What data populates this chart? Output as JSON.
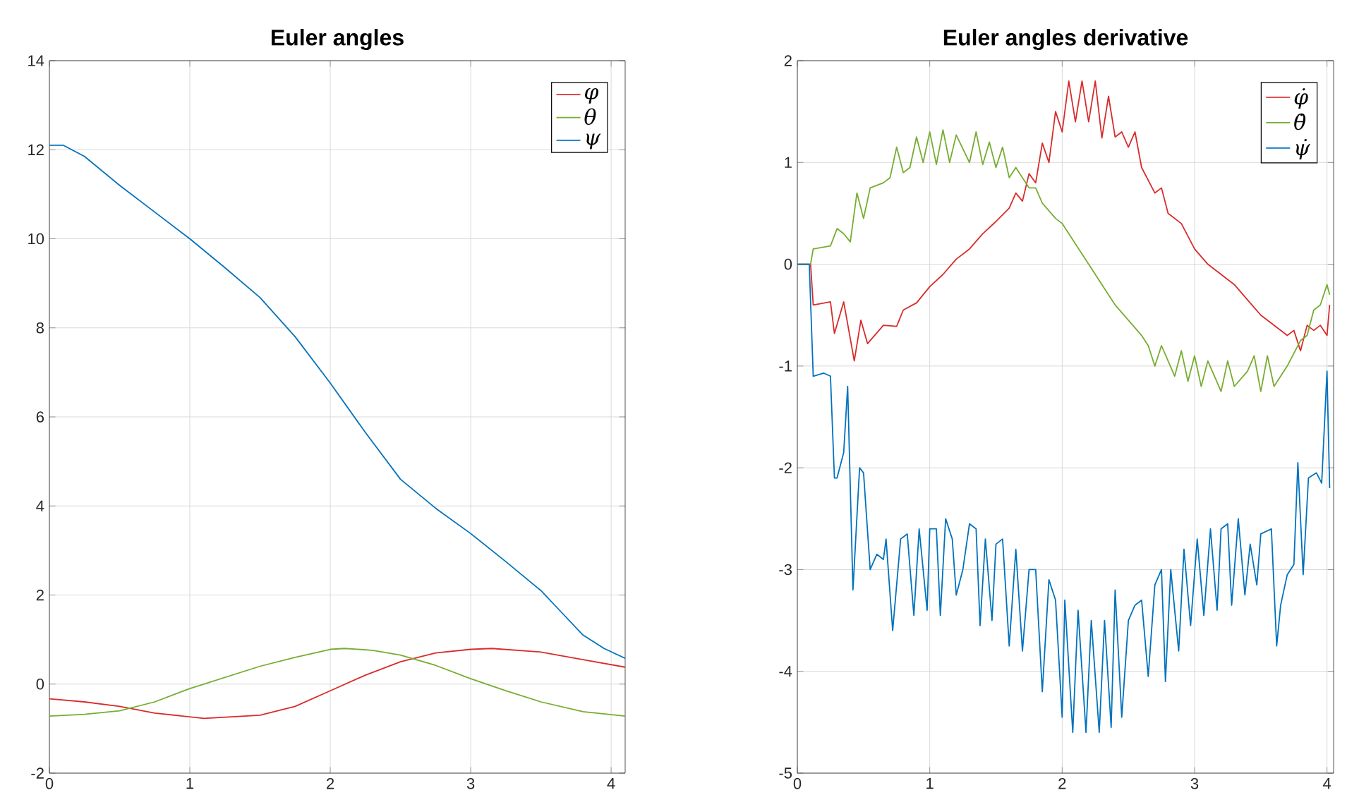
{
  "chart_data": [
    {
      "type": "line",
      "title": "Euler angles",
      "xlim": [
        0,
        4.1
      ],
      "ylim": [
        -2,
        14
      ],
      "xticks": [
        0,
        1,
        2,
        3,
        4
      ],
      "yticks": [
        -2,
        0,
        2,
        4,
        6,
        8,
        10,
        12,
        14
      ],
      "grid": true,
      "legend": "top right",
      "marker": "none",
      "series": [
        {
          "name": "φ",
          "color": "#d92b2b",
          "x": [
            0,
            0.25,
            0.5,
            0.75,
            1.1,
            1.5,
            1.75,
            2,
            2.25,
            2.5,
            2.75,
            3,
            3.15,
            3.5,
            3.8,
            4.1
          ],
          "values": [
            -0.33,
            -0.4,
            -0.5,
            -0.65,
            -0.77,
            -0.7,
            -0.5,
            -0.15,
            0.2,
            0.5,
            0.7,
            0.78,
            0.8,
            0.72,
            0.55,
            0.38
          ]
        },
        {
          "name": "θ",
          "color": "#77ac30",
          "x": [
            0,
            0.25,
            0.5,
            0.75,
            1,
            1.25,
            1.5,
            1.75,
            2,
            2.1,
            2.3,
            2.5,
            2.75,
            3,
            3.25,
            3.5,
            3.8,
            4.1
          ],
          "values": [
            -0.72,
            -0.68,
            -0.6,
            -0.4,
            -0.1,
            0.15,
            0.4,
            0.6,
            0.78,
            0.8,
            0.76,
            0.65,
            0.42,
            0.12,
            -0.15,
            -0.4,
            -0.62,
            -0.72
          ]
        },
        {
          "name": "ψ",
          "color": "#0072bd",
          "x": [
            0,
            0.1,
            0.25,
            0.5,
            0.75,
            1,
            1.25,
            1.5,
            1.75,
            2,
            2.25,
            2.5,
            2.75,
            3,
            3.25,
            3.5,
            3.65,
            3.8,
            3.95,
            4.1
          ],
          "values": [
            12.1,
            12.1,
            11.85,
            11.2,
            10.6,
            10.0,
            9.35,
            8.68,
            7.8,
            6.76,
            5.65,
            4.6,
            3.95,
            3.38,
            2.75,
            2.1,
            1.6,
            1.1,
            0.8,
            0.58
          ]
        }
      ]
    },
    {
      "type": "line",
      "title": "Euler angles derivative",
      "xlim": [
        0,
        4.05
      ],
      "ylim": [
        -5,
        2
      ],
      "xticks": [
        0,
        1,
        2,
        3,
        4
      ],
      "yticks": [
        -5,
        -4,
        -3,
        -2,
        -1,
        0,
        1,
        2
      ],
      "grid": true,
      "legend": "top right",
      "marker": "none",
      "series": [
        {
          "name": "φ̇",
          "color": "#d92b2b",
          "x": [
            0,
            0.1,
            0.12,
            0.25,
            0.28,
            0.35,
            0.43,
            0.48,
            0.53,
            0.65,
            0.75,
            0.8,
            0.9,
            1.0,
            1.1,
            1.2,
            1.3,
            1.4,
            1.5,
            1.6,
            1.65,
            1.7,
            1.75,
            1.8,
            1.85,
            1.9,
            1.95,
            2.0,
            2.05,
            2.1,
            2.15,
            2.2,
            2.25,
            2.3,
            2.35,
            2.4,
            2.45,
            2.5,
            2.55,
            2.6,
            2.7,
            2.75,
            2.8,
            2.9,
            3.0,
            3.1,
            3.2,
            3.3,
            3.4,
            3.5,
            3.6,
            3.7,
            3.75,
            3.8,
            3.85,
            3.9,
            3.95,
            4.0,
            4.02
          ],
          "values": [
            0,
            0,
            -0.4,
            -0.37,
            -0.68,
            -0.37,
            -0.95,
            -0.55,
            -0.78,
            -0.6,
            -0.61,
            -0.45,
            -0.38,
            -0.22,
            -0.1,
            0.05,
            0.15,
            0.3,
            0.42,
            0.55,
            0.7,
            0.62,
            0.89,
            0.8,
            1.19,
            1.0,
            1.5,
            1.3,
            1.8,
            1.4,
            1.8,
            1.4,
            1.8,
            1.24,
            1.65,
            1.25,
            1.3,
            1.15,
            1.3,
            0.95,
            0.7,
            0.75,
            0.5,
            0.4,
            0.15,
            0.0,
            -0.1,
            -0.2,
            -0.35,
            -0.5,
            -0.6,
            -0.7,
            -0.65,
            -0.85,
            -0.6,
            -0.65,
            -0.6,
            -0.7,
            -0.4
          ]
        },
        {
          "name": "θ̇",
          "color": "#77ac30",
          "x": [
            0,
            0.1,
            0.12,
            0.25,
            0.3,
            0.35,
            0.4,
            0.45,
            0.5,
            0.55,
            0.65,
            0.7,
            0.75,
            0.8,
            0.85,
            0.9,
            0.95,
            1.0,
            1.05,
            1.1,
            1.15,
            1.2,
            1.3,
            1.35,
            1.4,
            1.45,
            1.5,
            1.55,
            1.6,
            1.65,
            1.75,
            1.8,
            1.85,
            1.95,
            2.0,
            2.1,
            2.2,
            2.3,
            2.4,
            2.5,
            2.6,
            2.65,
            2.7,
            2.75,
            2.85,
            2.9,
            2.95,
            3.0,
            3.05,
            3.1,
            3.2,
            3.25,
            3.3,
            3.4,
            3.45,
            3.5,
            3.55,
            3.6,
            3.7,
            3.8,
            3.85,
            3.9,
            3.95,
            4.0,
            4.02
          ],
          "values": [
            0,
            0,
            0.15,
            0.18,
            0.35,
            0.3,
            0.22,
            0.7,
            0.45,
            0.75,
            0.8,
            0.85,
            1.15,
            0.9,
            0.95,
            1.25,
            1.0,
            1.3,
            0.98,
            1.32,
            1.0,
            1.27,
            1.0,
            1.3,
            0.98,
            1.2,
            0.95,
            1.15,
            0.85,
            0.95,
            0.75,
            0.75,
            0.6,
            0.45,
            0.4,
            0.2,
            0.0,
            -0.2,
            -0.4,
            -0.55,
            -0.7,
            -0.8,
            -1.0,
            -0.8,
            -1.1,
            -0.85,
            -1.15,
            -0.9,
            -1.2,
            -0.95,
            -1.25,
            -0.95,
            -1.2,
            -1.05,
            -0.9,
            -1.25,
            -0.9,
            -1.2,
            -1.0,
            -0.75,
            -0.7,
            -0.45,
            -0.4,
            -0.2,
            -0.3
          ]
        },
        {
          "name": "ψ̇",
          "color": "#0072bd",
          "x": [
            0,
            0.09,
            0.12,
            0.2,
            0.25,
            0.28,
            0.3,
            0.35,
            0.38,
            0.42,
            0.47,
            0.5,
            0.55,
            0.6,
            0.65,
            0.67,
            0.72,
            0.78,
            0.83,
            0.88,
            0.92,
            0.98,
            1.0,
            1.05,
            1.08,
            1.12,
            1.17,
            1.2,
            1.25,
            1.3,
            1.35,
            1.38,
            1.42,
            1.47,
            1.5,
            1.55,
            1.6,
            1.65,
            1.7,
            1.75,
            1.8,
            1.85,
            1.9,
            1.95,
            2.0,
            2.02,
            2.08,
            2.12,
            2.18,
            2.22,
            2.28,
            2.32,
            2.37,
            2.4,
            2.45,
            2.5,
            2.55,
            2.6,
            2.65,
            2.7,
            2.75,
            2.78,
            2.82,
            2.88,
            2.92,
            2.97,
            3.02,
            3.07,
            3.12,
            3.17,
            3.2,
            3.25,
            3.28,
            3.33,
            3.38,
            3.42,
            3.47,
            3.5,
            3.58,
            3.62,
            3.65,
            3.7,
            3.75,
            3.78,
            3.82,
            3.86,
            3.92,
            3.96,
            4.0,
            4.02
          ],
          "values": [
            0,
            0,
            -1.1,
            -1.07,
            -1.1,
            -2.1,
            -2.1,
            -1.85,
            -1.2,
            -3.2,
            -2.0,
            -2.05,
            -3.0,
            -2.85,
            -2.9,
            -2.7,
            -3.6,
            -2.7,
            -2.65,
            -3.45,
            -2.6,
            -3.4,
            -2.6,
            -2.6,
            -3.45,
            -2.5,
            -2.7,
            -3.25,
            -3.0,
            -2.55,
            -2.6,
            -3.55,
            -2.7,
            -3.5,
            -2.75,
            -2.7,
            -3.75,
            -2.8,
            -3.8,
            -3.0,
            -3.0,
            -4.2,
            -3.1,
            -3.3,
            -4.45,
            -3.3,
            -4.6,
            -3.4,
            -4.6,
            -3.5,
            -4.6,
            -3.5,
            -4.55,
            -3.2,
            -4.45,
            -3.5,
            -3.35,
            -3.3,
            -4.05,
            -3.15,
            -3.0,
            -4.1,
            -3.0,
            -3.8,
            -2.8,
            -3.55,
            -2.7,
            -3.45,
            -2.6,
            -3.4,
            -2.6,
            -2.55,
            -3.35,
            -2.5,
            -3.25,
            -2.75,
            -3.15,
            -2.65,
            -2.6,
            -3.75,
            -3.35,
            -3.05,
            -2.95,
            -1.95,
            -3.05,
            -2.1,
            -2.05,
            -2.15,
            -1.05,
            -2.2
          ]
        }
      ]
    }
  ]
}
